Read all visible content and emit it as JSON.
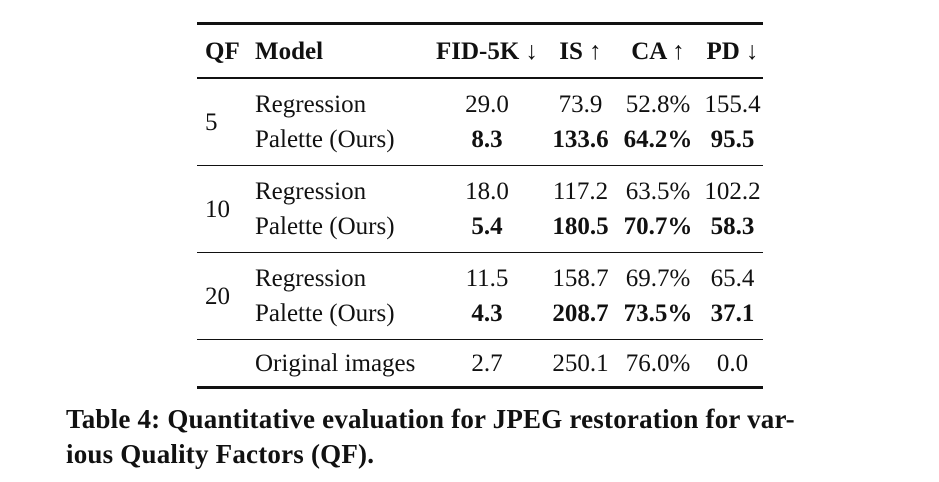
{
  "colors": {
    "text": "#111111",
    "background": "#ffffff"
  },
  "table": {
    "columns": {
      "qf": "QF",
      "model": "Model",
      "metrics": [
        "FID-5K ↓",
        "IS ↑",
        "CA ↑",
        "PD ↓"
      ]
    },
    "groups": [
      {
        "qf": "5",
        "rows": [
          {
            "model": "Regression",
            "emphasis": false,
            "values": [
              "29.0",
              "73.9",
              "52.8%",
              "155.4"
            ]
          },
          {
            "model": "Palette (Ours)",
            "emphasis": true,
            "values": [
              "8.3",
              "133.6",
              "64.2%",
              "95.5"
            ]
          }
        ]
      },
      {
        "qf": "10",
        "rows": [
          {
            "model": "Regression",
            "emphasis": false,
            "values": [
              "18.0",
              "117.2",
              "63.5%",
              "102.2"
            ]
          },
          {
            "model": "Palette (Ours)",
            "emphasis": true,
            "values": [
              "5.4",
              "180.5",
              "70.7%",
              "58.3"
            ]
          }
        ]
      },
      {
        "qf": "20",
        "rows": [
          {
            "model": "Regression",
            "emphasis": false,
            "values": [
              "11.5",
              "158.7",
              "69.7%",
              "65.4"
            ]
          },
          {
            "model": "Palette (Ours)",
            "emphasis": true,
            "values": [
              "4.3",
              "208.7",
              "73.5%",
              "37.1"
            ]
          }
        ]
      }
    ],
    "footer_row": {
      "model": "Original images",
      "values": [
        "2.7",
        "250.1",
        "76.0%",
        "0.0"
      ]
    }
  },
  "caption": {
    "line1": "Table 4: Quantitative evaluation for JPEG restoration for var-",
    "line2": "ious Quality Factors (QF)."
  }
}
